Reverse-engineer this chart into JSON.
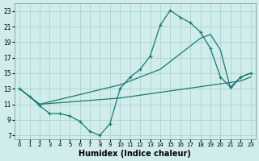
{
  "xlabel": "Humidex (Indice chaleur)",
  "background_color": "#d0ecec",
  "grid_color": "#a8d4d4",
  "line_color": "#1a7a6e",
  "xlim": [
    -0.5,
    23.5
  ],
  "ylim": [
    6.5,
    24.0
  ],
  "xticks": [
    0,
    1,
    2,
    3,
    4,
    5,
    6,
    7,
    8,
    9,
    10,
    11,
    12,
    13,
    14,
    15,
    16,
    17,
    18,
    19,
    20,
    21,
    22,
    23
  ],
  "yticks": [
    7,
    9,
    11,
    13,
    15,
    17,
    19,
    21,
    23
  ],
  "curve1_x": [
    0,
    1,
    2,
    3,
    4,
    5,
    6,
    7,
    8,
    9,
    10,
    11,
    12,
    13,
    14,
    15,
    16,
    17,
    18,
    19,
    20,
    21,
    22,
    23
  ],
  "curve1_y": [
    13.0,
    12.0,
    10.8,
    9.8,
    9.8,
    9.5,
    8.8,
    7.5,
    7.0,
    8.5,
    13.0,
    14.5,
    15.5,
    17.2,
    21.2,
    23.1,
    22.2,
    21.5,
    20.3,
    18.2,
    14.5,
    13.2,
    14.5,
    15.0
  ],
  "curve2_x": [
    0,
    2,
    10,
    14,
    16,
    17,
    18,
    19,
    20,
    21,
    22,
    23
  ],
  "curve2_y": [
    13.0,
    11.0,
    13.5,
    15.5,
    17.5,
    18.5,
    19.5,
    20.0,
    18.0,
    13.0,
    14.5,
    15.0
  ],
  "curve3_x": [
    0,
    2,
    10,
    22,
    23
  ],
  "curve3_y": [
    13.0,
    11.0,
    11.8,
    14.0,
    14.5
  ]
}
